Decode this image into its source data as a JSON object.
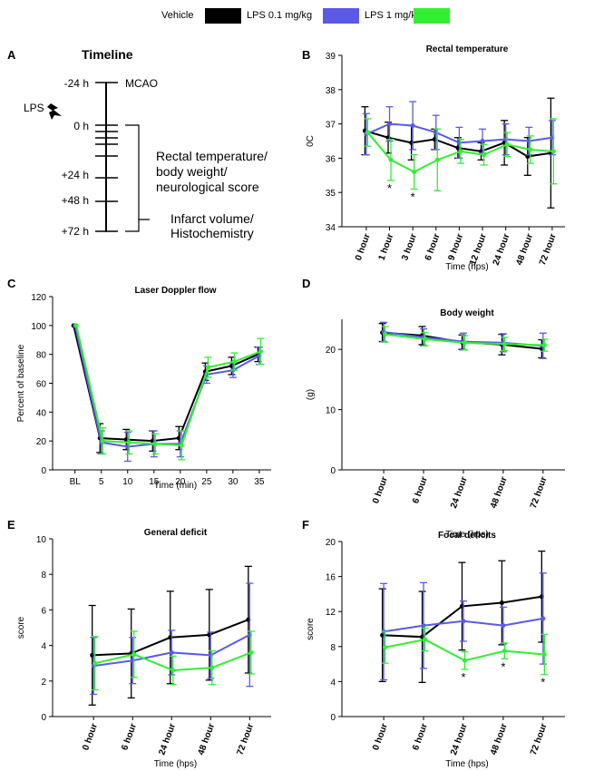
{
  "legend": {
    "items": [
      {
        "label": "Vehicle",
        "color": "#000000"
      },
      {
        "label": "LPS 0.1 mg/kg",
        "color": "#5a5ae6"
      },
      {
        "label": "LPS 1 mg/kg",
        "color": "#33ee33"
      }
    ]
  },
  "timeline": {
    "panel_letter": "A",
    "title": "Timeline",
    "lps_label": "LPS",
    "tick_labels": [
      "-24 h",
      "0 h",
      "+24 h",
      "+48 h",
      "+72 h"
    ],
    "mcao_label": "MCAO",
    "bracket1_lines": [
      "Rectal temperature/",
      "body weight/",
      "neurological score"
    ],
    "bracket2_lines": [
      "Infarct volume/",
      "Histochemistry"
    ]
  },
  "chart_data": [
    {
      "panel": "B",
      "type": "line",
      "title": "Rectal temperature",
      "ylabel": "0C",
      "xlabel": "Time (hps)",
      "ylim": [
        34,
        39
      ],
      "yticks": [
        34,
        35,
        36,
        37,
        38,
        39
      ],
      "categories": [
        "0 hour",
        "1 hour",
        "3 hour",
        "6 hour",
        "9 hour",
        "12 hour",
        "24 hour",
        "48 hour",
        "72 hour"
      ],
      "series": [
        {
          "name": "Vehicle",
          "values": [
            36.8,
            36.6,
            36.45,
            36.55,
            36.3,
            36.2,
            36.45,
            36.05,
            36.15
          ],
          "errors": [
            0.7,
            0.45,
            0.5,
            0.3,
            0.3,
            0.25,
            0.65,
            0.55,
            1.6
          ]
        },
        {
          "name": "LPS 0.1 mg/kg",
          "values": [
            36.7,
            37.0,
            36.95,
            36.75,
            36.45,
            36.5,
            36.55,
            36.5,
            36.6
          ],
          "errors": [
            0.6,
            0.5,
            0.7,
            0.5,
            0.45,
            0.35,
            0.45,
            0.4,
            0.5
          ]
        },
        {
          "name": "LPS 1 mg/kg",
          "values": [
            36.75,
            35.95,
            35.6,
            35.95,
            36.2,
            36.1,
            36.4,
            36.25,
            36.2
          ],
          "errors": [
            0.4,
            0.6,
            0.5,
            0.9,
            0.35,
            0.3,
            0.35,
            0.4,
            0.95
          ]
        }
      ],
      "annotations": [
        {
          "category": "1 hour",
          "text": "*"
        },
        {
          "category": "3 hour",
          "text": "*"
        }
      ]
    },
    {
      "panel": "C",
      "type": "line",
      "title": "Laser Doppler flow",
      "ylabel": "Percent of baseline",
      "xlabel": "Time (min)",
      "ylim": [
        0,
        120
      ],
      "yticks": [
        0,
        20,
        40,
        60,
        80,
        100,
        120
      ],
      "categories": [
        "BL",
        "5",
        "10",
        "15",
        "20",
        "25",
        "30",
        "35"
      ],
      "series": [
        {
          "name": "Vehicle",
          "values": [
            100,
            22,
            21,
            20,
            22,
            68,
            72,
            80
          ],
          "errors": [
            0,
            10,
            7,
            7,
            8,
            6,
            6,
            5
          ]
        },
        {
          "name": "LPS 0.1 mg/kg",
          "values": [
            100,
            19,
            16,
            18,
            18,
            66,
            69,
            79
          ],
          "errors": [
            0,
            8,
            10,
            9,
            9,
            6,
            5,
            6
          ]
        },
        {
          "name": "LPS 1 mg/kg",
          "values": [
            100,
            20,
            19,
            18,
            17,
            71,
            75,
            82
          ],
          "errors": [
            0,
            9,
            8,
            7,
            10,
            7,
            6,
            9
          ]
        }
      ]
    },
    {
      "panel": "D",
      "type": "line",
      "title": "Body weight",
      "ylabel": "(g)",
      "xlabel": "Time (hps)",
      "ylim": [
        0,
        25
      ],
      "yticks": [
        0,
        10,
        20
      ],
      "categories": [
        "0 hour",
        "6 hour",
        "24 hour",
        "48 hour",
        "72 hour"
      ],
      "series": [
        {
          "name": "Vehicle",
          "values": [
            22.8,
            22.3,
            21.2,
            20.8,
            20.1
          ],
          "errors": [
            1.5,
            1.5,
            1.2,
            1.7,
            1.5
          ]
        },
        {
          "name": "LPS 0.1 mg/kg",
          "values": [
            22.9,
            22.0,
            21.3,
            21.1,
            20.6
          ],
          "errors": [
            1.6,
            1.4,
            1.4,
            1.5,
            2.1
          ]
        },
        {
          "name": "LPS 1 mg/kg",
          "values": [
            22.5,
            21.7,
            21.1,
            20.9,
            20.7
          ],
          "errors": [
            1.3,
            1.1,
            1.2,
            1.1,
            1.0
          ]
        }
      ]
    },
    {
      "panel": "E",
      "type": "line",
      "title": "General deficit",
      "ylabel": "score",
      "xlabel": "Time (hps)",
      "ylim": [
        0,
        10
      ],
      "yticks": [
        0,
        2,
        4,
        6,
        8,
        10
      ],
      "categories": [
        "0 hour",
        "6 hour",
        "24 hour",
        "48 hour",
        "72 hour"
      ],
      "series": [
        {
          "name": "Vehicle",
          "values": [
            3.45,
            3.55,
            4.45,
            4.6,
            5.45
          ],
          "errors": [
            2.8,
            2.5,
            2.6,
            2.55,
            3.0
          ]
        },
        {
          "name": "LPS 0.1 mg/kg",
          "values": [
            2.85,
            3.15,
            3.6,
            3.45,
            4.6
          ],
          "errors": [
            1.6,
            1.3,
            1.25,
            1.3,
            2.9
          ]
        },
        {
          "name": "LPS 1 mg/kg",
          "values": [
            3.0,
            3.5,
            2.6,
            2.75,
            3.6
          ],
          "errors": [
            1.5,
            1.3,
            0.8,
            0.95,
            1.2
          ]
        }
      ]
    },
    {
      "panel": "F",
      "type": "line",
      "title": "Focal deficits",
      "ylabel": "score",
      "xlabel": "Time (hps)",
      "ylim": [
        0,
        20
      ],
      "yticks": [
        0,
        4,
        8,
        12,
        16,
        20
      ],
      "categories": [
        "0 hour",
        "6 hour",
        "24 hour",
        "48 hour",
        "72 hour"
      ],
      "series": [
        {
          "name": "Vehicle",
          "values": [
            9.3,
            9.1,
            12.6,
            13.0,
            13.7
          ],
          "errors": [
            5.3,
            5.2,
            5.0,
            4.8,
            5.2
          ]
        },
        {
          "name": "LPS 0.1 mg/kg",
          "values": [
            9.7,
            10.4,
            10.9,
            10.4,
            11.2
          ],
          "errors": [
            5.5,
            4.9,
            2.3,
            2.1,
            5.2
          ]
        },
        {
          "name": "LPS 1 mg/kg",
          "values": [
            7.9,
            8.8,
            6.4,
            7.5,
            7.1
          ],
          "errors": [
            1.8,
            1.3,
            1.0,
            0.9,
            2.3
          ]
        }
      ],
      "annotations": [
        {
          "category": "24 hour",
          "text": "*"
        },
        {
          "category": "48 hour",
          "text": "*"
        },
        {
          "category": "72 hour",
          "text": "*"
        }
      ]
    }
  ]
}
